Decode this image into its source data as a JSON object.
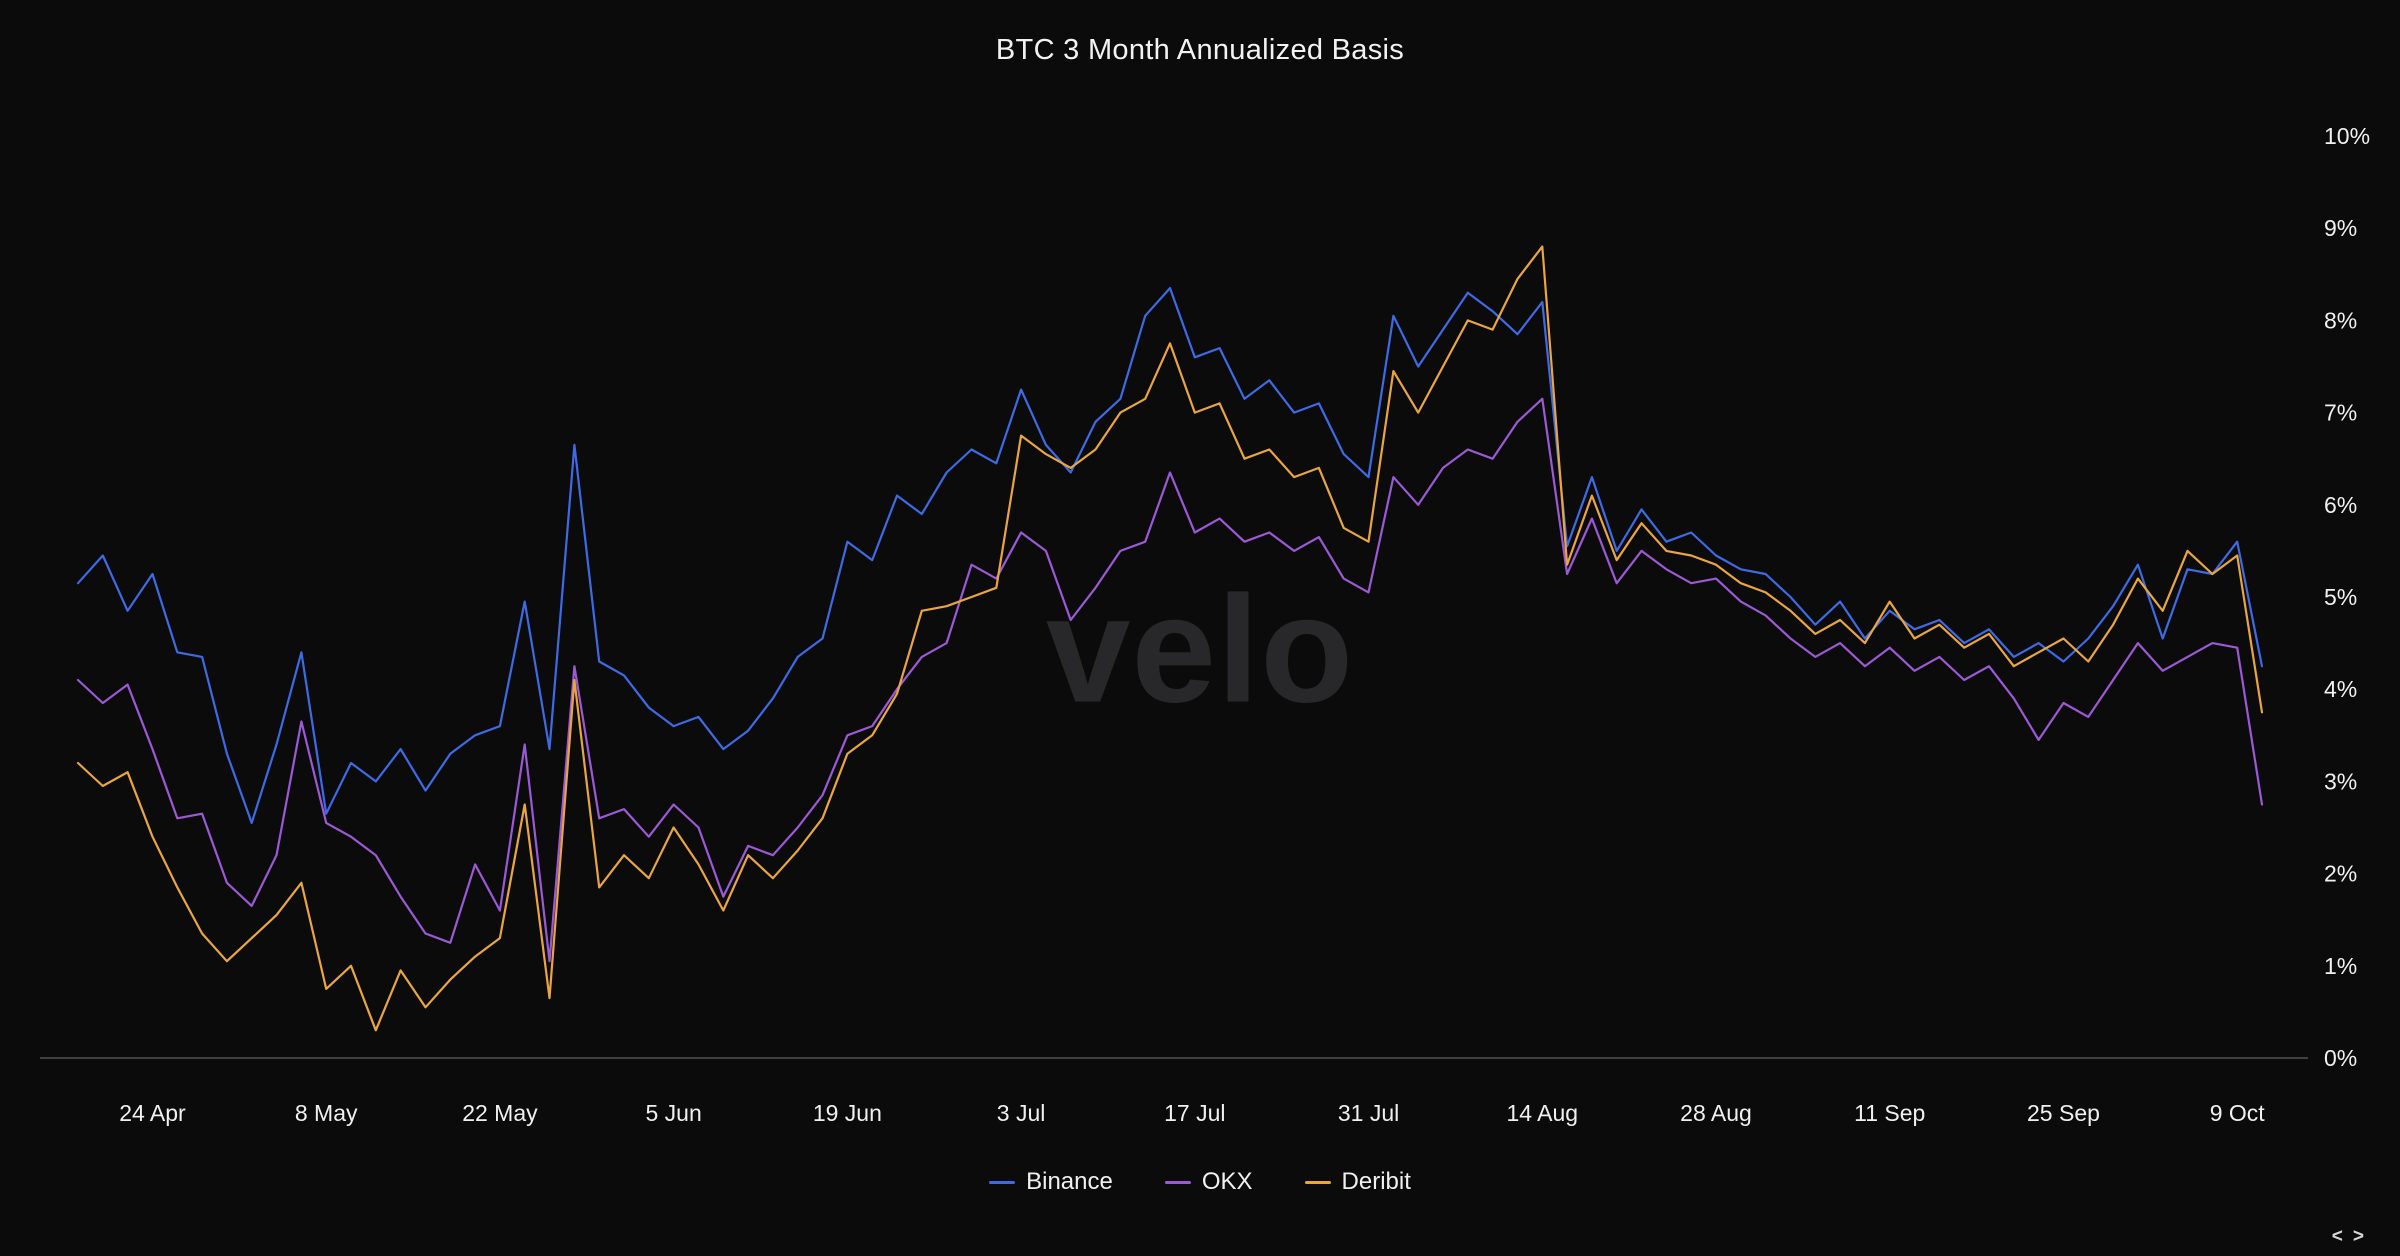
{
  "chart_data": {
    "type": "line",
    "title": "BTC 3 Month Annualized Basis",
    "watermark": "velo",
    "grid": "baseline-only",
    "legend_position": "bottom-center",
    "x_axis": {
      "start_day": 0,
      "step_days": 2,
      "span_days": 176,
      "ticks": [
        {
          "label": "24 Apr",
          "day": 6
        },
        {
          "label": "8 May",
          "day": 20
        },
        {
          "label": "22 May",
          "day": 34
        },
        {
          "label": "5 Jun",
          "day": 48
        },
        {
          "label": "19 Jun",
          "day": 62
        },
        {
          "label": "3 Jul",
          "day": 76
        },
        {
          "label": "17 Jul",
          "day": 90
        },
        {
          "label": "31 Jul",
          "day": 104
        },
        {
          "label": "14 Aug",
          "day": 118
        },
        {
          "label": "28 Aug",
          "day": 132
        },
        {
          "label": "11 Sep",
          "day": 146
        },
        {
          "label": "25 Sep",
          "day": 160
        },
        {
          "label": "9 Oct",
          "day": 174
        }
      ]
    },
    "y_axis": {
      "min": 0,
      "max": 10,
      "tick_step": 1,
      "position": "right",
      "tick_labels": [
        "0%",
        "1%",
        "2%",
        "3%",
        "4%",
        "5%",
        "6%",
        "7%",
        "8%",
        "9%",
        "10%"
      ]
    },
    "series": [
      {
        "name": "Binance",
        "color": "#3d6be6",
        "values": [
          5.15,
          5.45,
          4.85,
          5.25,
          4.4,
          4.35,
          3.3,
          2.55,
          3.4,
          4.4,
          2.65,
          3.2,
          3.0,
          3.35,
          2.9,
          3.3,
          3.5,
          3.6,
          4.95,
          3.35,
          6.65,
          4.3,
          4.15,
          3.8,
          3.6,
          3.7,
          3.35,
          3.55,
          3.9,
          4.35,
          4.55,
          5.6,
          5.4,
          6.1,
          5.9,
          6.35,
          6.6,
          6.45,
          7.25,
          6.65,
          6.35,
          6.9,
          7.15,
          8.05,
          8.35,
          7.6,
          7.7,
          7.15,
          7.35,
          7.0,
          7.1,
          6.55,
          6.3,
          8.05,
          7.5,
          7.9,
          8.3,
          8.1,
          7.85,
          8.2,
          5.55,
          6.3,
          5.5,
          5.95,
          5.6,
          5.7,
          5.45,
          5.3,
          5.25,
          5.0,
          4.7,
          4.95,
          4.55,
          4.85,
          4.65,
          4.75,
          4.5,
          4.65,
          4.35,
          4.5,
          4.3,
          4.55,
          4.9,
          5.35,
          4.55,
          5.3,
          5.25,
          5.6,
          4.25
        ]
      },
      {
        "name": "OKX",
        "color": "#9c59d6",
        "values": [
          4.1,
          3.85,
          4.05,
          3.35,
          2.6,
          2.65,
          1.9,
          1.65,
          2.2,
          3.65,
          2.55,
          2.4,
          2.2,
          1.75,
          1.35,
          1.25,
          2.1,
          1.6,
          3.4,
          1.05,
          4.25,
          2.6,
          2.7,
          2.4,
          2.75,
          2.5,
          1.75,
          2.3,
          2.2,
          2.5,
          2.85,
          3.5,
          3.6,
          4.0,
          4.35,
          4.5,
          5.35,
          5.2,
          5.7,
          5.5,
          4.75,
          5.1,
          5.5,
          5.6,
          6.35,
          5.7,
          5.85,
          5.6,
          5.7,
          5.5,
          5.65,
          5.2,
          5.05,
          6.3,
          6.0,
          6.4,
          6.6,
          6.5,
          6.9,
          7.15,
          5.25,
          5.85,
          5.15,
          5.5,
          5.3,
          5.15,
          5.2,
          4.95,
          4.8,
          4.55,
          4.35,
          4.5,
          4.25,
          4.45,
          4.2,
          4.35,
          4.1,
          4.25,
          3.9,
          3.45,
          3.85,
          3.7,
          4.1,
          4.5,
          4.2,
          4.35,
          4.5,
          4.45,
          2.75
        ]
      },
      {
        "name": "Deribit",
        "color": "#eaa63c",
        "values": [
          3.2,
          2.95,
          3.1,
          2.4,
          1.85,
          1.35,
          1.05,
          1.3,
          1.55,
          1.9,
          0.75,
          1.0,
          0.3,
          0.95,
          0.55,
          0.85,
          1.1,
          1.3,
          2.75,
          0.65,
          4.1,
          1.85,
          2.2,
          1.95,
          2.5,
          2.1,
          1.6,
          2.2,
          1.95,
          2.25,
          2.6,
          3.3,
          3.5,
          3.95,
          4.85,
          4.9,
          5.0,
          5.1,
          6.75,
          6.55,
          6.4,
          6.6,
          7.0,
          7.15,
          7.75,
          7.0,
          7.1,
          6.5,
          6.6,
          6.3,
          6.4,
          5.75,
          5.6,
          7.45,
          7.0,
          7.5,
          8.0,
          7.9,
          8.45,
          8.8,
          5.35,
          6.1,
          5.4,
          5.8,
          5.5,
          5.45,
          5.35,
          5.15,
          5.05,
          4.85,
          4.6,
          4.75,
          4.5,
          4.95,
          4.55,
          4.7,
          4.45,
          4.6,
          4.25,
          4.4,
          4.55,
          4.3,
          4.7,
          5.2,
          4.85,
          5.5,
          5.25,
          5.45,
          3.75
        ]
      }
    ]
  },
  "pager": {
    "prev": "<",
    "next": ">"
  },
  "colors": {
    "background": "#0b0b0c",
    "axis_text": "#f0f0f0",
    "baseline": "#515157",
    "watermark_color": "#28282a"
  }
}
